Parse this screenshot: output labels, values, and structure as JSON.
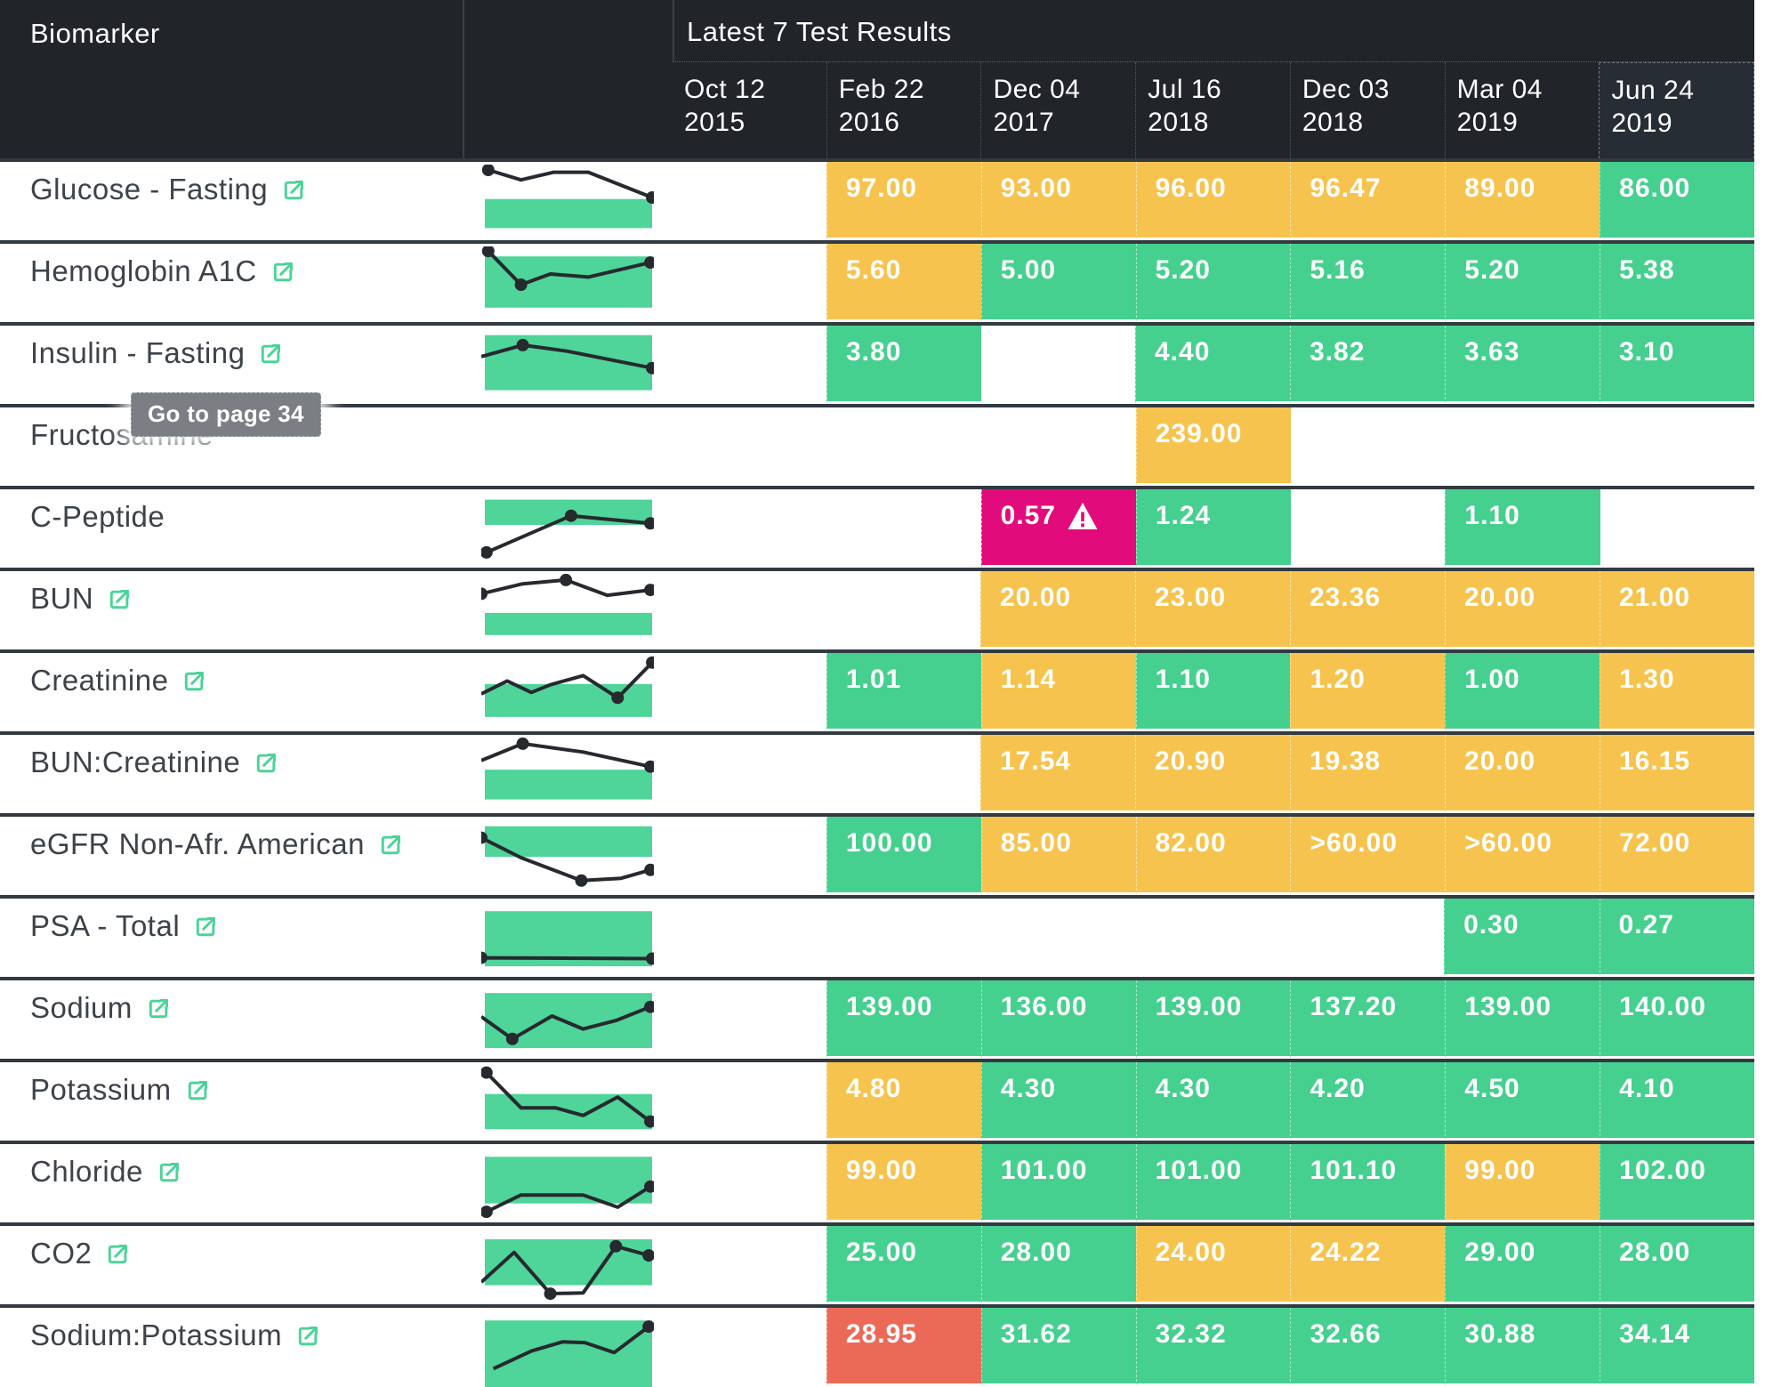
{
  "header": {
    "biomarker_col": "Biomarker",
    "results_title": "Latest 7 Test Results",
    "dates": [
      {
        "line1": "Oct 12",
        "line2": "2015"
      },
      {
        "line1": "Feb 22",
        "line2": "2016"
      },
      {
        "line1": "Dec 04",
        "line2": "2017"
      },
      {
        "line1": "Jul 16",
        "line2": "2018"
      },
      {
        "line1": "Dec 03",
        "line2": "2018"
      },
      {
        "line1": "Mar 04",
        "line2": "2019"
      },
      {
        "line1": "Jun 24",
        "line2": "2019"
      }
    ],
    "highlighted_date_index": 6
  },
  "tooltip": {
    "text": "Go to page 34",
    "anchor_row": "Fructosamine"
  },
  "status_colors": {
    "in_range": "#45d08f",
    "out_of_range": "#f6c44e",
    "critical": "#e20b7c",
    "high": "#ea6a57",
    "range_band": "#4fd49a",
    "spark_line": "#26292e",
    "header_bg": "#212529",
    "row_divider": "#323a40",
    "link_icon": "#4cd398",
    "tooltip_bg": "#7b7f83"
  },
  "icons": {
    "row_link": "external-link-icon",
    "critical_flag": "warning-icon"
  },
  "rows": [
    {
      "label": "Glucose - Fasting",
      "link": true,
      "spark": {
        "band": [
          45,
          83
        ],
        "points": [
          [
            4,
            7
          ],
          [
            23,
            20
          ],
          [
            42,
            10
          ],
          [
            62,
            10
          ],
          [
            99,
            43
          ]
        ],
        "dots": [
          0,
          4
        ]
      },
      "values": [
        null,
        {
          "text": "97.00",
          "status": "out_of_range"
        },
        {
          "text": "93.00",
          "status": "out_of_range"
        },
        {
          "text": "96.00",
          "status": "out_of_range"
        },
        {
          "text": "96.47",
          "status": "out_of_range"
        },
        {
          "text": "89.00",
          "status": "out_of_range"
        },
        {
          "text": "86.00",
          "status": "in_range"
        }
      ]
    },
    {
      "label": "Hemoglobin A1C",
      "link": true,
      "spark": {
        "band": [
          13,
          80
        ],
        "points": [
          [
            4,
            6
          ],
          [
            23,
            50
          ],
          [
            40,
            36
          ],
          [
            62,
            40
          ],
          [
            98,
            21
          ]
        ],
        "dots": [
          0,
          1,
          4
        ]
      },
      "values": [
        null,
        {
          "text": "5.60",
          "status": "out_of_range"
        },
        {
          "text": "5.00",
          "status": "in_range"
        },
        {
          "text": "5.20",
          "status": "in_range"
        },
        {
          "text": "5.16",
          "status": "in_range"
        },
        {
          "text": "5.20",
          "status": "in_range"
        },
        {
          "text": "5.38",
          "status": "in_range"
        }
      ]
    },
    {
      "label": "Insulin - Fasting",
      "link": true,
      "spark": {
        "band": [
          9,
          81
        ],
        "points": [
          [
            0,
            37
          ],
          [
            24,
            22
          ],
          [
            50,
            30
          ],
          [
            99,
            52
          ]
        ],
        "dots": [
          1,
          3
        ]
      },
      "values": [
        null,
        {
          "text": "3.80",
          "status": "in_range"
        },
        null,
        {
          "text": "4.40",
          "status": "in_range"
        },
        {
          "text": "3.82",
          "status": "in_range"
        },
        {
          "text": "3.63",
          "status": "in_range"
        },
        {
          "text": "3.10",
          "status": "in_range"
        }
      ]
    },
    {
      "label": "Fructosamine",
      "link": false,
      "spark": null,
      "values": [
        null,
        null,
        null,
        {
          "text": "239.00",
          "status": "out_of_range"
        },
        null,
        null,
        null
      ]
    },
    {
      "label": "C-Peptide",
      "link": false,
      "spark": {
        "band": [
          10,
          43
        ],
        "points": [
          [
            3,
            79
          ],
          [
            52,
            31
          ],
          [
            98,
            41
          ]
        ],
        "dots": [
          0,
          1,
          2
        ]
      },
      "values": [
        null,
        null,
        {
          "text": "0.57",
          "status": "critical",
          "warning": true
        },
        {
          "text": "1.24",
          "status": "in_range"
        },
        null,
        {
          "text": "1.10",
          "status": "in_range"
        },
        null
      ]
    },
    {
      "label": "BUN",
      "link": true,
      "spark": {
        "band": [
          51,
          80
        ],
        "points": [
          [
            0,
            26
          ],
          [
            24,
            13
          ],
          [
            49,
            8
          ],
          [
            73,
            28
          ],
          [
            98,
            21
          ]
        ],
        "dots": [
          0,
          2,
          4
        ]
      },
      "values": [
        null,
        null,
        {
          "text": "20.00",
          "status": "out_of_range"
        },
        {
          "text": "23.00",
          "status": "out_of_range"
        },
        {
          "text": "23.36",
          "status": "out_of_range"
        },
        {
          "text": "20.00",
          "status": "out_of_range"
        },
        {
          "text": "21.00",
          "status": "out_of_range"
        }
      ]
    },
    {
      "label": "Creatinine",
      "link": true,
      "spark": {
        "band": [
          37,
          80
        ],
        "points": [
          [
            0,
            50
          ],
          [
            15,
            33
          ],
          [
            29,
            48
          ],
          [
            40,
            38
          ],
          [
            59,
            26
          ],
          [
            79,
            55
          ],
          [
            99,
            9
          ]
        ],
        "dots": [
          5,
          6
        ]
      },
      "values": [
        null,
        {
          "text": "1.01",
          "status": "in_range"
        },
        {
          "text": "1.14",
          "status": "out_of_range"
        },
        {
          "text": "1.10",
          "status": "in_range"
        },
        {
          "text": "1.20",
          "status": "out_of_range"
        },
        {
          "text": "1.00",
          "status": "in_range"
        },
        {
          "text": "1.30",
          "status": "out_of_range"
        }
      ]
    },
    {
      "label": "BUN:Creatinine",
      "link": true,
      "spark": {
        "band": [
          42,
          81
        ],
        "points": [
          [
            0,
            30
          ],
          [
            24,
            8
          ],
          [
            59,
            19
          ],
          [
            98,
            38
          ]
        ],
        "dots": [
          1,
          3
        ]
      },
      "values": [
        null,
        null,
        {
          "text": "17.54",
          "status": "out_of_range"
        },
        {
          "text": "20.90",
          "status": "out_of_range"
        },
        {
          "text": "19.38",
          "status": "out_of_range"
        },
        {
          "text": "20.00",
          "status": "out_of_range"
        },
        {
          "text": "16.15",
          "status": "out_of_range"
        }
      ]
    },
    {
      "label": "eGFR Non-Afr. American",
      "link": true,
      "spark": {
        "band": [
          9,
          49
        ],
        "points": [
          [
            0,
            24
          ],
          [
            23,
            50
          ],
          [
            58,
            80
          ],
          [
            81,
            77
          ],
          [
            98,
            66
          ]
        ],
        "dots": [
          0,
          2,
          4
        ]
      },
      "values": [
        null,
        {
          "text": "100.00",
          "status": "in_range"
        },
        {
          "text": "85.00",
          "status": "out_of_range"
        },
        {
          "text": "82.00",
          "status": "out_of_range"
        },
        {
          "text": ">60.00",
          "status": "out_of_range"
        },
        {
          "text": ">60.00",
          "status": "out_of_range"
        },
        {
          "text": "72.00",
          "status": "out_of_range"
        }
      ]
    },
    {
      "label": "PSA - Total",
      "link": true,
      "spark": {
        "band": [
          13,
          85
        ],
        "points": [
          [
            0,
            74
          ],
          [
            99,
            75
          ]
        ],
        "dots": [
          0,
          1
        ]
      },
      "values": [
        null,
        null,
        null,
        null,
        null,
        {
          "text": "0.30",
          "status": "in_range"
        },
        {
          "text": "0.27",
          "status": "in_range"
        }
      ]
    },
    {
      "label": "Sodium",
      "link": true,
      "spark": {
        "band": [
          13,
          85
        ],
        "points": [
          [
            0,
            44
          ],
          [
            18,
            73
          ],
          [
            41,
            43
          ],
          [
            59,
            60
          ],
          [
            78,
            49
          ],
          [
            98,
            31
          ]
        ],
        "dots": [
          1,
          5
        ]
      },
      "values": [
        null,
        {
          "text": "139.00",
          "status": "in_range"
        },
        {
          "text": "136.00",
          "status": "in_range"
        },
        {
          "text": "139.00",
          "status": "in_range"
        },
        {
          "text": "137.20",
          "status": "in_range"
        },
        {
          "text": "139.00",
          "status": "in_range"
        },
        {
          "text": "140.00",
          "status": "in_range"
        }
      ]
    },
    {
      "label": "Potassium",
      "link": true,
      "spark": {
        "band": [
          38,
          84
        ],
        "points": [
          [
            3,
            10
          ],
          [
            23,
            56
          ],
          [
            43,
            56
          ],
          [
            59,
            66
          ],
          [
            79,
            42
          ],
          [
            98,
            74
          ]
        ],
        "dots": [
          0,
          5
        ]
      },
      "values": [
        null,
        {
          "text": "4.80",
          "status": "out_of_range"
        },
        {
          "text": "4.30",
          "status": "in_range"
        },
        {
          "text": "4.30",
          "status": "in_range"
        },
        {
          "text": "4.20",
          "status": "in_range"
        },
        {
          "text": "4.50",
          "status": "in_range"
        },
        {
          "text": "4.10",
          "status": "in_range"
        }
      ]
    },
    {
      "label": "Chloride",
      "link": true,
      "spark": {
        "band": [
          13,
          74
        ],
        "points": [
          [
            3,
            85
          ],
          [
            23,
            63
          ],
          [
            59,
            63
          ],
          [
            79,
            79
          ],
          [
            98,
            52
          ]
        ],
        "dots": [
          0,
          4
        ]
      },
      "values": [
        null,
        {
          "text": "99.00",
          "status": "out_of_range"
        },
        {
          "text": "101.00",
          "status": "in_range"
        },
        {
          "text": "101.00",
          "status": "in_range"
        },
        {
          "text": "101.10",
          "status": "in_range"
        },
        {
          "text": "99.00",
          "status": "out_of_range"
        },
        {
          "text": "102.00",
          "status": "in_range"
        }
      ]
    },
    {
      "label": "CO2",
      "link": true,
      "spark": {
        "band": [
          14,
          74
        ],
        "points": [
          [
            0,
            70
          ],
          [
            19,
            31
          ],
          [
            40,
            85
          ],
          [
            59,
            84
          ],
          [
            78,
            23
          ],
          [
            97,
            35
          ]
        ],
        "dots": [
          2,
          4,
          5
        ]
      },
      "values": [
        null,
        {
          "text": "25.00",
          "status": "in_range"
        },
        {
          "text": "28.00",
          "status": "in_range"
        },
        {
          "text": "24.00",
          "status": "out_of_range"
        },
        {
          "text": "24.22",
          "status": "out_of_range"
        },
        {
          "text": "29.00",
          "status": "in_range"
        },
        {
          "text": "28.00",
          "status": "in_range"
        }
      ]
    },
    {
      "label": "Sodium:Potassium",
      "link": true,
      "spark": {
        "band": [
          13,
          100
        ],
        "points": [
          [
            7,
            76
          ],
          [
            29,
            53
          ],
          [
            47,
            41
          ],
          [
            60,
            42
          ],
          [
            77,
            55
          ],
          [
            97,
            21
          ]
        ],
        "dots": [
          5
        ]
      },
      "values": [
        null,
        {
          "text": "28.95",
          "status": "high"
        },
        {
          "text": "31.62",
          "status": "in_range"
        },
        {
          "text": "32.32",
          "status": "in_range"
        },
        {
          "text": "32.66",
          "status": "in_range"
        },
        {
          "text": "30.88",
          "status": "in_range"
        },
        {
          "text": "34.14",
          "status": "in_range"
        }
      ]
    }
  ]
}
